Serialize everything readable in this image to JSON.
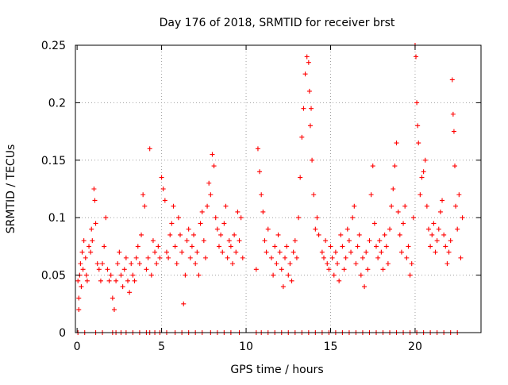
{
  "chart_data": {
    "type": "scatter",
    "title": "Day 176 of 2018, SRMTID for receiver brst",
    "xlabel": "GPS time / hours",
    "ylabel": "SRMTID / TECUs",
    "xlim": [
      -0.1,
      23.9
    ],
    "ylim": [
      0,
      0.25
    ],
    "xticks": [
      0,
      5,
      10,
      15,
      20
    ],
    "xtick_labels": [
      "0",
      "5",
      "10",
      "15",
      "20"
    ],
    "yticks": [
      0,
      0.05,
      0.1,
      0.15,
      0.2,
      0.25
    ],
    "ytick_labels": [
      "0",
      "0.05",
      "0.1",
      "0.15",
      "0.2",
      "0.25"
    ],
    "grid": true,
    "marker": "+",
    "series": [
      {
        "name": "SRMTID",
        "color": "#ff0000",
        "points": [
          [
            0.05,
            0.045
          ],
          [
            0.1,
            0.02
          ],
          [
            0.1,
            0.03
          ],
          [
            0.15,
            0.05
          ],
          [
            0.2,
            0.06
          ],
          [
            0.25,
            0.04
          ],
          [
            0.3,
            0.07
          ],
          [
            0.35,
            0.055
          ],
          [
            0.4,
            0.08
          ],
          [
            0.5,
            0.065
          ],
          [
            0.55,
            0.05
          ],
          [
            0.6,
            0.045
          ],
          [
            0.7,
            0.075
          ],
          [
            0.8,
            0.07
          ],
          [
            0.85,
            0.09
          ],
          [
            0.9,
            0.08
          ],
          [
            1.0,
            0.125
          ],
          [
            1.05,
            0.115
          ],
          [
            1.1,
            0.095
          ],
          [
            1.2,
            0.06
          ],
          [
            1.3,
            0.055
          ],
          [
            1.4,
            0.045
          ],
          [
            1.5,
            0.06
          ],
          [
            1.6,
            0.075
          ],
          [
            1.7,
            0.1
          ],
          [
            1.8,
            0.055
          ],
          [
            1.9,
            0.045
          ],
          [
            2.0,
            0.05
          ],
          [
            2.1,
            0.03
          ],
          [
            2.2,
            0.02
          ],
          [
            2.3,
            0.045
          ],
          [
            2.4,
            0.06
          ],
          [
            2.5,
            0.07
          ],
          [
            2.6,
            0.05
          ],
          [
            2.7,
            0.04
          ],
          [
            2.8,
            0.055
          ],
          [
            2.9,
            0.065
          ],
          [
            3.0,
            0.045
          ],
          [
            3.1,
            0.035
          ],
          [
            3.2,
            0.06
          ],
          [
            3.3,
            0.05
          ],
          [
            3.4,
            0.045
          ],
          [
            3.5,
            0.065
          ],
          [
            3.6,
            0.075
          ],
          [
            3.7,
            0.06
          ],
          [
            3.8,
            0.085
          ],
          [
            3.9,
            0.12
          ],
          [
            4.0,
            0.11
          ],
          [
            4.1,
            0.055
          ],
          [
            4.2,
            0.065
          ],
          [
            4.3,
            0.16
          ],
          [
            4.4,
            0.05
          ],
          [
            4.5,
            0.08
          ],
          [
            4.6,
            0.07
          ],
          [
            4.7,
            0.06
          ],
          [
            4.8,
            0.075
          ],
          [
            4.9,
            0.065
          ],
          [
            5.0,
            0.135
          ],
          [
            5.1,
            0.125
          ],
          [
            5.2,
            0.115
          ],
          [
            5.3,
            0.07
          ],
          [
            5.4,
            0.065
          ],
          [
            5.5,
            0.085
          ],
          [
            5.6,
            0.095
          ],
          [
            5.7,
            0.11
          ],
          [
            5.8,
            0.075
          ],
          [
            5.9,
            0.06
          ],
          [
            6.0,
            0.1
          ],
          [
            6.1,
            0.085
          ],
          [
            6.2,
            0.07
          ],
          [
            6.3,
            0.025
          ],
          [
            6.4,
            0.05
          ],
          [
            6.5,
            0.08
          ],
          [
            6.6,
            0.09
          ],
          [
            6.7,
            0.065
          ],
          [
            6.8,
            0.075
          ],
          [
            6.9,
            0.085
          ],
          [
            7.0,
            0.06
          ],
          [
            7.1,
            0.07
          ],
          [
            7.2,
            0.05
          ],
          [
            7.3,
            0.095
          ],
          [
            7.4,
            0.105
          ],
          [
            7.5,
            0.08
          ],
          [
            7.6,
            0.065
          ],
          [
            7.7,
            0.11
          ],
          [
            7.8,
            0.13
          ],
          [
            7.9,
            0.12
          ],
          [
            8.0,
            0.155
          ],
          [
            8.1,
            0.145
          ],
          [
            8.2,
            0.1
          ],
          [
            8.3,
            0.09
          ],
          [
            8.4,
            0.075
          ],
          [
            8.5,
            0.085
          ],
          [
            8.6,
            0.07
          ],
          [
            8.7,
            0.095
          ],
          [
            8.8,
            0.11
          ],
          [
            8.9,
            0.065
          ],
          [
            9.0,
            0.08
          ],
          [
            9.1,
            0.075
          ],
          [
            9.2,
            0.06
          ],
          [
            9.3,
            0.085
          ],
          [
            9.4,
            0.07
          ],
          [
            9.5,
            0.105
          ],
          [
            9.6,
            0.08
          ],
          [
            9.7,
            0.1
          ],
          [
            9.8,
            0.065
          ],
          [
            10.6,
            0.055
          ],
          [
            10.7,
            0.16
          ],
          [
            10.8,
            0.14
          ],
          [
            10.9,
            0.12
          ],
          [
            11.0,
            0.105
          ],
          [
            11.1,
            0.08
          ],
          [
            11.2,
            0.07
          ],
          [
            11.3,
            0.09
          ],
          [
            11.5,
            0.065
          ],
          [
            11.6,
            0.05
          ],
          [
            11.7,
            0.075
          ],
          [
            11.8,
            0.06
          ],
          [
            11.9,
            0.085
          ],
          [
            12.0,
            0.07
          ],
          [
            12.1,
            0.055
          ],
          [
            12.2,
            0.04
          ],
          [
            12.3,
            0.065
          ],
          [
            12.4,
            0.075
          ],
          [
            12.5,
            0.05
          ],
          [
            12.6,
            0.06
          ],
          [
            12.7,
            0.045
          ],
          [
            12.8,
            0.07
          ],
          [
            12.9,
            0.08
          ],
          [
            13.0,
            0.065
          ],
          [
            13.1,
            0.1
          ],
          [
            13.2,
            0.135
          ],
          [
            13.3,
            0.17
          ],
          [
            13.4,
            0.195
          ],
          [
            13.5,
            0.225
          ],
          [
            13.6,
            0.24
          ],
          [
            13.7,
            0.235
          ],
          [
            13.75,
            0.21
          ],
          [
            13.8,
            0.18
          ],
          [
            13.85,
            0.195
          ],
          [
            13.9,
            0.15
          ],
          [
            14.0,
            0.12
          ],
          [
            14.1,
            0.09
          ],
          [
            14.2,
            0.1
          ],
          [
            14.3,
            0.085
          ],
          [
            14.5,
            0.07
          ],
          [
            14.6,
            0.065
          ],
          [
            14.7,
            0.08
          ],
          [
            14.8,
            0.06
          ],
          [
            14.9,
            0.055
          ],
          [
            15.0,
            0.075
          ],
          [
            15.1,
            0.065
          ],
          [
            15.2,
            0.05
          ],
          [
            15.3,
            0.07
          ],
          [
            15.4,
            0.06
          ],
          [
            15.5,
            0.045
          ],
          [
            15.6,
            0.085
          ],
          [
            15.7,
            0.075
          ],
          [
            15.8,
            0.055
          ],
          [
            15.9,
            0.065
          ],
          [
            16.0,
            0.09
          ],
          [
            16.1,
            0.08
          ],
          [
            16.2,
            0.07
          ],
          [
            16.3,
            0.1
          ],
          [
            16.4,
            0.11
          ],
          [
            16.5,
            0.06
          ],
          [
            16.6,
            0.075
          ],
          [
            16.7,
            0.085
          ],
          [
            16.8,
            0.05
          ],
          [
            16.9,
            0.065
          ],
          [
            17.0,
            0.04
          ],
          [
            17.1,
            0.07
          ],
          [
            17.2,
            0.055
          ],
          [
            17.3,
            0.08
          ],
          [
            17.4,
            0.12
          ],
          [
            17.5,
            0.145
          ],
          [
            17.6,
            0.095
          ],
          [
            17.7,
            0.075
          ],
          [
            17.8,
            0.065
          ],
          [
            17.9,
            0.08
          ],
          [
            18.0,
            0.07
          ],
          [
            18.1,
            0.055
          ],
          [
            18.2,
            0.085
          ],
          [
            18.3,
            0.075
          ],
          [
            18.4,
            0.06
          ],
          [
            18.5,
            0.09
          ],
          [
            18.6,
            0.11
          ],
          [
            18.7,
            0.125
          ],
          [
            18.8,
            0.145
          ],
          [
            18.9,
            0.165
          ],
          [
            19.0,
            0.105
          ],
          [
            19.1,
            0.085
          ],
          [
            19.2,
            0.07
          ],
          [
            19.3,
            0.095
          ],
          [
            19.4,
            0.11
          ],
          [
            19.5,
            0.065
          ],
          [
            19.6,
            0.075
          ],
          [
            19.7,
            0.05
          ],
          [
            19.8,
            0.06
          ],
          [
            19.9,
            0.1
          ],
          [
            20.0,
            0.25
          ],
          [
            20.05,
            0.24
          ],
          [
            20.1,
            0.2
          ],
          [
            20.15,
            0.18
          ],
          [
            20.2,
            0.165
          ],
          [
            20.3,
            0.12
          ],
          [
            20.4,
            0.135
          ],
          [
            20.5,
            0.14
          ],
          [
            20.6,
            0.15
          ],
          [
            20.7,
            0.11
          ],
          [
            20.8,
            0.09
          ],
          [
            20.9,
            0.075
          ],
          [
            21.0,
            0.085
          ],
          [
            21.1,
            0.095
          ],
          [
            21.2,
            0.07
          ],
          [
            21.3,
            0.08
          ],
          [
            21.4,
            0.09
          ],
          [
            21.5,
            0.105
          ],
          [
            21.6,
            0.115
          ],
          [
            21.7,
            0.085
          ],
          [
            21.8,
            0.075
          ],
          [
            21.9,
            0.06
          ],
          [
            22.0,
            0.07
          ],
          [
            22.1,
            0.08
          ],
          [
            22.2,
            0.22
          ],
          [
            22.25,
            0.19
          ],
          [
            22.3,
            0.175
          ],
          [
            22.35,
            0.145
          ],
          [
            22.4,
            0.11
          ],
          [
            22.5,
            0.09
          ],
          [
            22.6,
            0.12
          ],
          [
            22.7,
            0.065
          ],
          [
            22.8,
            0.1
          ]
        ]
      }
    ],
    "baseline_zero_x": [
      0.05,
      0.45,
      1.1,
      1.5,
      2.1,
      2.3,
      2.6,
      2.9,
      3.3,
      3.7,
      4.1,
      4.3,
      4.6,
      4.9,
      5.3,
      5.8,
      6.2,
      6.6,
      7.0,
      7.4,
      7.9,
      8.3,
      8.7,
      9.1,
      9.6,
      10.6,
      10.9,
      11.3,
      11.7,
      12.1,
      12.5,
      12.9,
      13.3,
      13.7,
      14.1,
      14.5,
      14.9,
      15.3,
      15.7,
      16.1,
      16.5,
      16.9,
      17.3,
      17.7,
      18.1,
      18.5,
      18.9,
      19.3,
      19.7,
      20.1,
      20.5,
      20.9,
      21.3,
      21.7,
      22.1,
      22.5
    ]
  }
}
